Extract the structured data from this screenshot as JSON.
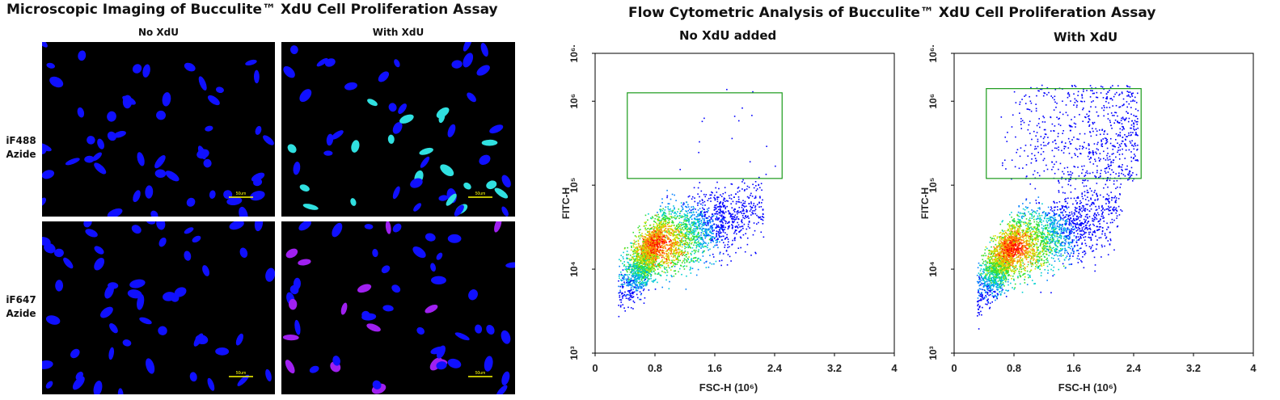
{
  "microscopy": {
    "title": "Microscopic Imaging of Bucculite™ XdU Cell Proliferation Assay",
    "columns": [
      "No XdU",
      "With XdU"
    ],
    "rows": [
      "iF488 Azide",
      "iF647 Azide"
    ],
    "scale_bar": "50um",
    "colors": {
      "nucleus": "#1010ff",
      "iF488": "#30e0e0",
      "iF647": "#a020f0",
      "scale": "#ffff00"
    }
  },
  "flow": {
    "title": "Flow Cytometric Analysis of Bucculite™ XdU Cell Proliferation Assay"
  },
  "chart_data": [
    {
      "type": "scatter",
      "title": "No XdU added",
      "xlabel": "FSC-H (10⁶)",
      "ylabel": "FITC-H",
      "xlim": [
        0,
        4
      ],
      "xticks": [
        "0",
        "0.8",
        "1.6",
        "2.4",
        "3.2",
        "4"
      ],
      "xtick_values": [
        0,
        0.8,
        1.6,
        2.4,
        3.2,
        4
      ],
      "yscale": "log",
      "ylim_log10": [
        3,
        6.57
      ],
      "yticks": [
        "10³",
        "10⁴",
        "10⁵",
        "10⁶",
        "10⁶·"
      ],
      "ytick_log10": [
        3,
        4,
        5,
        6,
        6.57
      ],
      "gate": {
        "x": [
          0.43,
          2.5
        ],
        "y_log10": [
          5.08,
          6.1
        ],
        "color": "#1a9a1a"
      },
      "population": {
        "center_x": 0.85,
        "center_log10y": 4.3,
        "events": 3500,
        "events_in_gate": 18
      }
    },
    {
      "type": "scatter",
      "title": "With XdU",
      "xlabel": "FSC-H (10⁶)",
      "ylabel": "FITC-H",
      "xlim": [
        0,
        4
      ],
      "xticks": [
        "0",
        "0.8",
        "1.6",
        "2.4",
        "3.2",
        "4"
      ],
      "xtick_values": [
        0,
        0.8,
        1.6,
        2.4,
        3.2,
        4
      ],
      "yscale": "log",
      "ylim_log10": [
        3,
        6.57
      ],
      "yticks": [
        "10³",
        "10⁴",
        "10⁵",
        "10⁶",
        "10⁶·"
      ],
      "ytick_log10": [
        3,
        4,
        5,
        6,
        6.57
      ],
      "gate": {
        "x": [
          0.43,
          2.5
        ],
        "y_log10": [
          5.08,
          6.15
        ],
        "color": "#1a9a1a"
      },
      "population": {
        "center_x": 0.8,
        "center_log10y": 4.25,
        "events": 3500,
        "events_in_gate": 700
      }
    }
  ]
}
